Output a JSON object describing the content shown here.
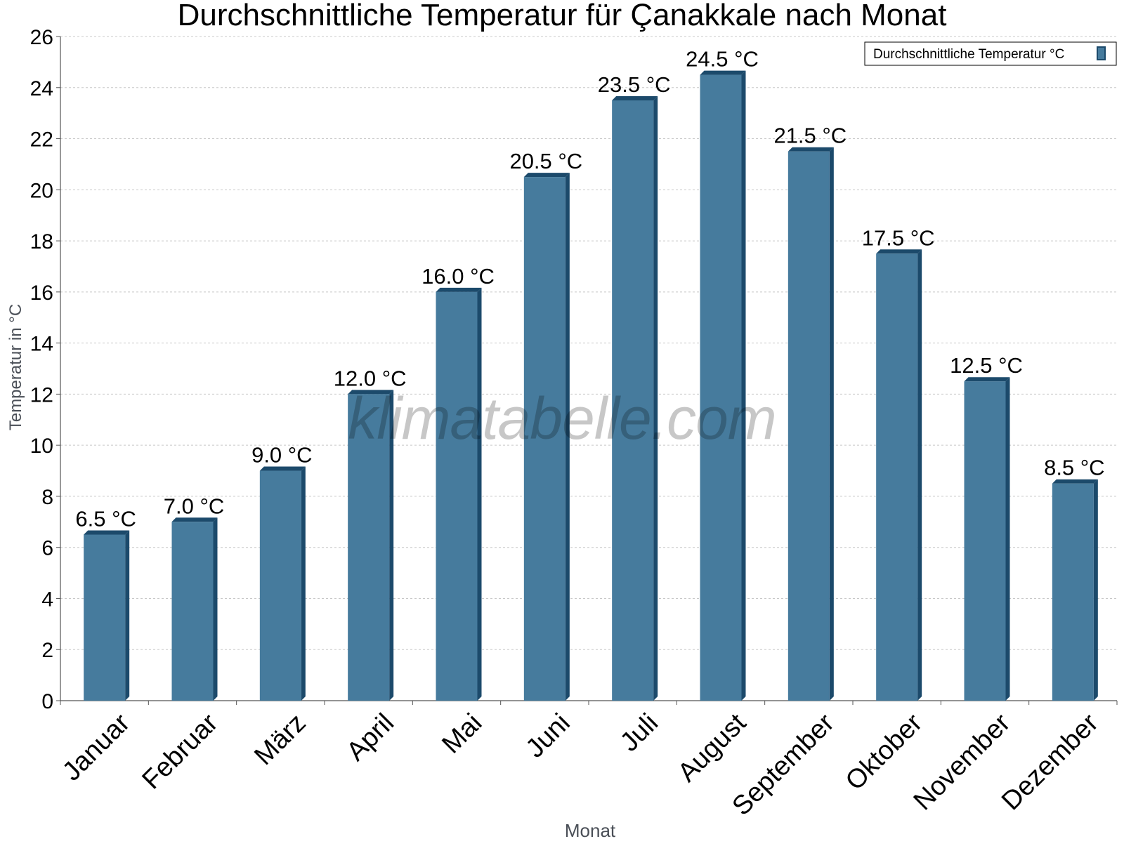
{
  "chart_data": {
    "type": "bar",
    "title": "Durchschnittliche Temperatur für Çanakkale nach Monat",
    "xlabel": "Monat",
    "ylabel": "Temperatur in °C",
    "ylim": [
      0,
      26
    ],
    "yticks": [
      0,
      2,
      4,
      6,
      8,
      10,
      12,
      14,
      16,
      18,
      20,
      22,
      24,
      26
    ],
    "grid": true,
    "legend_position": "top-right",
    "categories": [
      "Januar",
      "Februar",
      "März",
      "April",
      "Mai",
      "Juni",
      "Juli",
      "August",
      "September",
      "Oktober",
      "November",
      "Dezember"
    ],
    "series": [
      {
        "name": "Durchschnittliche Temperatur °C",
        "values": [
          6.5,
          7.0,
          9.0,
          12.0,
          16.0,
          20.5,
          23.5,
          24.5,
          21.5,
          17.5,
          12.5,
          8.5
        ],
        "labels": [
          "6.5 °C",
          "7.0 °C",
          "9.0 °C",
          "12.0 °C",
          "16.0 °C",
          "20.5 °C",
          "23.5 °C",
          "24.5 °C",
          "21.5 °C",
          "17.5 °C",
          "12.5 °C",
          "8.5 °C"
        ],
        "color": "#467b9d",
        "edge_color": "#1c4a6b"
      }
    ]
  },
  "watermark": "klimatabelle.com"
}
